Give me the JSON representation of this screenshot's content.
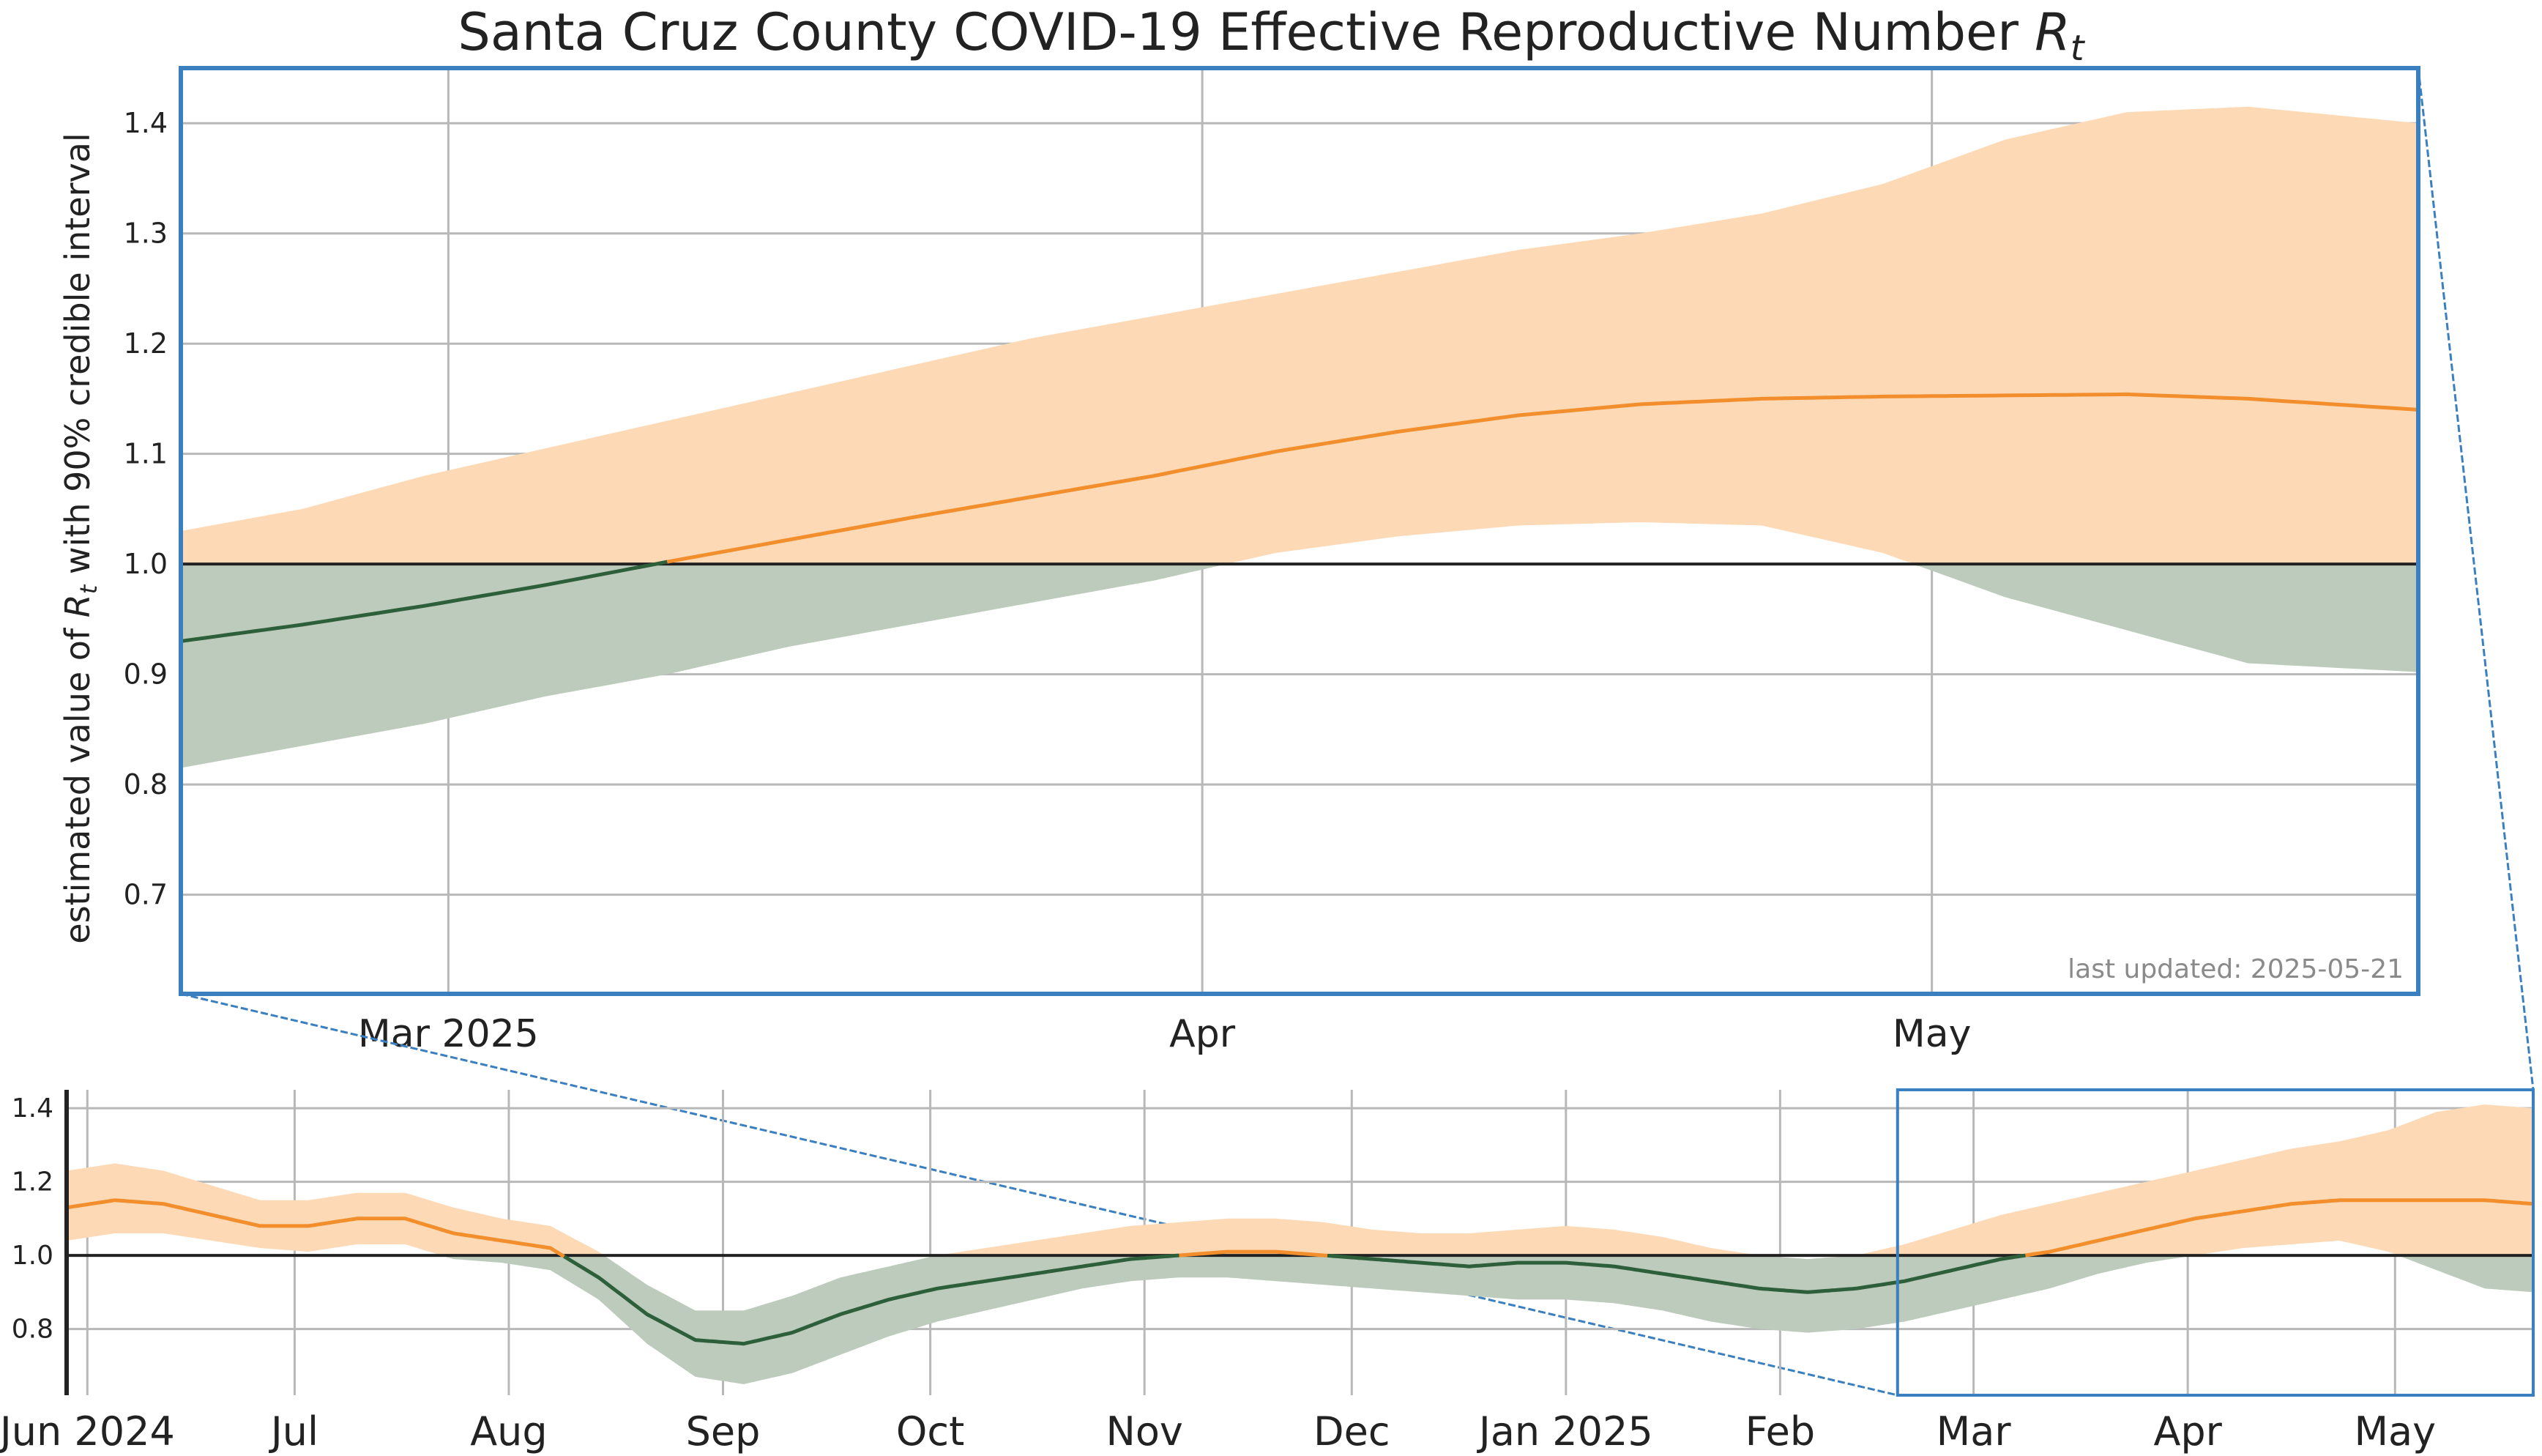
{
  "chart_data": [
    {
      "type": "area",
      "panel": "main",
      "title": "Santa Cruz County COVID-19 Effective Reproductive Number ",
      "title_math": "R",
      "title_sub": "t",
      "ylabel_pre": "estimated value of ",
      "ylabel_math": "R",
      "ylabel_sub": "t",
      "ylabel_post": " with 90% credible interval",
      "ylim": [
        0.61,
        1.45
      ],
      "xlim": [
        "2025-02-18",
        "2025-05-21"
      ],
      "x_ticks": [
        {
          "date": "2025-03-01",
          "label": "Mar 2025"
        },
        {
          "date": "2025-04-01",
          "label": "Apr"
        },
        {
          "date": "2025-05-01",
          "label": "May"
        }
      ],
      "y_ticks": [
        0.7,
        0.8,
        0.9,
        1.0,
        1.1,
        1.2,
        1.3,
        1.4
      ],
      "reference_line": 1.0,
      "grid": true,
      "annotation": "last updated: 2025-05-21",
      "colors": {
        "above_line": "#f28e2b",
        "above_band": "#fdd9b5",
        "below_line": "#2d5f3a",
        "below_band": "#bccbbb",
        "reference": "#222222",
        "frame": "#3a7fbf"
      },
      "series": [
        {
          "x": [
            "2025-02-18",
            "2025-02-23",
            "2025-02-28",
            "2025-03-05",
            "2025-03-10",
            "2025-03-15",
            "2025-03-20",
            "2025-03-25",
            "2025-03-30",
            "2025-04-04",
            "2025-04-09",
            "2025-04-14",
            "2025-04-19",
            "2025-04-24",
            "2025-04-29",
            "2025-05-04",
            "2025-05-09",
            "2025-05-14",
            "2025-05-21"
          ],
          "y": [
            0.93,
            0.945,
            0.962,
            0.981,
            1.002,
            1.022,
            1.042,
            1.061,
            1.08,
            1.102,
            1.12,
            1.135,
            1.145,
            1.15,
            1.152,
            1.153,
            1.154,
            1.15,
            1.14
          ],
          "lower": [
            0.815,
            0.835,
            0.855,
            0.88,
            0.9,
            0.925,
            0.945,
            0.965,
            0.985,
            1.01,
            1.025,
            1.035,
            1.038,
            1.035,
            1.01,
            0.97,
            0.94,
            0.91,
            0.902
          ],
          "upper": [
            1.03,
            1.05,
            1.08,
            1.105,
            1.13,
            1.155,
            1.18,
            1.205,
            1.225,
            1.245,
            1.265,
            1.285,
            1.3,
            1.318,
            1.345,
            1.385,
            1.41,
            1.415,
            1.4
          ]
        }
      ]
    },
    {
      "type": "area",
      "panel": "overview",
      "ylim": [
        0.62,
        1.45
      ],
      "xlim": [
        "2024-05-29",
        "2025-05-21"
      ],
      "x_ticks": [
        {
          "date": "2024-06-01",
          "label": "Jun 2024"
        },
        {
          "date": "2024-07-01",
          "label": "Jul"
        },
        {
          "date": "2024-08-01",
          "label": "Aug"
        },
        {
          "date": "2024-09-01",
          "label": "Sep"
        },
        {
          "date": "2024-10-01",
          "label": "Oct"
        },
        {
          "date": "2024-11-01",
          "label": "Nov"
        },
        {
          "date": "2024-12-01",
          "label": "Dec"
        },
        {
          "date": "2025-01-01",
          "label": "Jan 2025"
        },
        {
          "date": "2025-02-01",
          "label": "Feb"
        },
        {
          "date": "2025-03-01",
          "label": "Mar"
        },
        {
          "date": "2025-04-01",
          "label": "Apr"
        },
        {
          "date": "2025-05-01",
          "label": "May"
        }
      ],
      "y_ticks": [
        0.8,
        1.0,
        1.2,
        1.4
      ],
      "reference_line": 1.0,
      "grid": true,
      "zoom_window": [
        "2025-02-18",
        "2025-05-21"
      ],
      "series": [
        {
          "x": [
            "2024-05-29",
            "2024-06-05",
            "2024-06-12",
            "2024-06-19",
            "2024-06-26",
            "2024-07-03",
            "2024-07-10",
            "2024-07-17",
            "2024-07-24",
            "2024-07-31",
            "2024-08-07",
            "2024-08-14",
            "2024-08-21",
            "2024-08-28",
            "2024-09-04",
            "2024-09-11",
            "2024-09-18",
            "2024-09-25",
            "2024-10-02",
            "2024-10-09",
            "2024-10-16",
            "2024-10-23",
            "2024-10-30",
            "2024-11-06",
            "2024-11-13",
            "2024-11-20",
            "2024-11-27",
            "2024-12-04",
            "2024-12-11",
            "2024-12-18",
            "2024-12-25",
            "2025-01-01",
            "2025-01-08",
            "2025-01-15",
            "2025-01-22",
            "2025-01-29",
            "2025-02-05",
            "2025-02-12",
            "2025-02-19",
            "2025-02-26",
            "2025-03-05",
            "2025-03-12",
            "2025-03-19",
            "2025-03-26",
            "2025-04-02",
            "2025-04-09",
            "2025-04-16",
            "2025-04-23",
            "2025-04-30",
            "2025-05-07",
            "2025-05-14",
            "2025-05-21"
          ],
          "y": [
            1.13,
            1.15,
            1.14,
            1.11,
            1.08,
            1.08,
            1.1,
            1.1,
            1.06,
            1.04,
            1.02,
            0.94,
            0.84,
            0.77,
            0.76,
            0.79,
            0.84,
            0.88,
            0.91,
            0.93,
            0.95,
            0.97,
            0.99,
            1.0,
            1.01,
            1.01,
            1.0,
            0.99,
            0.98,
            0.97,
            0.98,
            0.98,
            0.97,
            0.95,
            0.93,
            0.91,
            0.9,
            0.91,
            0.93,
            0.96,
            0.99,
            1.01,
            1.04,
            1.07,
            1.1,
            1.12,
            1.14,
            1.15,
            1.15,
            1.15,
            1.15,
            1.14
          ],
          "lower": [
            1.04,
            1.06,
            1.06,
            1.04,
            1.02,
            1.01,
            1.03,
            1.03,
            0.99,
            0.98,
            0.96,
            0.88,
            0.76,
            0.67,
            0.65,
            0.68,
            0.73,
            0.78,
            0.82,
            0.85,
            0.88,
            0.91,
            0.93,
            0.94,
            0.94,
            0.93,
            0.92,
            0.91,
            0.9,
            0.89,
            0.88,
            0.88,
            0.87,
            0.85,
            0.82,
            0.8,
            0.79,
            0.8,
            0.82,
            0.85,
            0.88,
            0.91,
            0.95,
            0.98,
            1.0,
            1.02,
            1.03,
            1.04,
            1.01,
            0.96,
            0.91,
            0.9
          ],
          "upper": [
            1.23,
            1.25,
            1.23,
            1.19,
            1.15,
            1.15,
            1.17,
            1.17,
            1.13,
            1.1,
            1.08,
            1.01,
            0.92,
            0.85,
            0.85,
            0.89,
            0.94,
            0.97,
            1.0,
            1.02,
            1.04,
            1.06,
            1.08,
            1.09,
            1.1,
            1.1,
            1.09,
            1.07,
            1.06,
            1.06,
            1.07,
            1.08,
            1.07,
            1.05,
            1.02,
            1.0,
            0.99,
            1.0,
            1.03,
            1.07,
            1.11,
            1.14,
            1.17,
            1.2,
            1.23,
            1.26,
            1.29,
            1.31,
            1.34,
            1.39,
            1.41,
            1.4
          ]
        }
      ]
    }
  ]
}
